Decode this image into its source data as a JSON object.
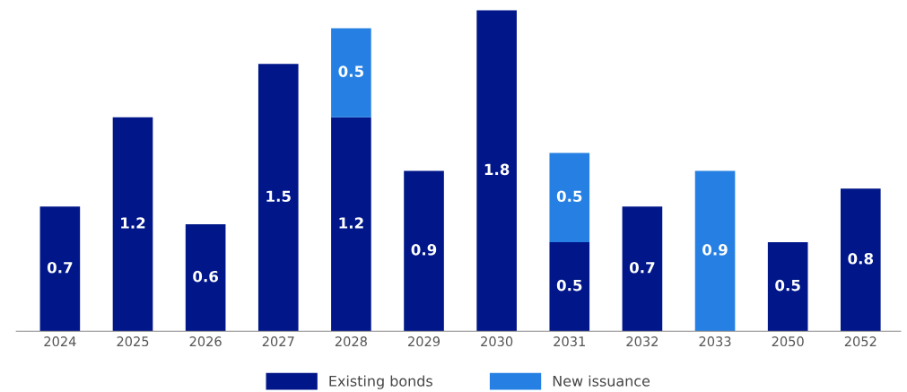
{
  "chart_data": {
    "type": "bar",
    "stacked": true,
    "data_labels": true,
    "legend": "bottom",
    "grid": false,
    "categories": [
      "2024",
      "2025",
      "2026",
      "2027",
      "2028",
      "2029",
      "2030",
      "2031",
      "2032",
      "2033",
      "2050",
      "2052"
    ],
    "series": [
      {
        "name": "Existing bonds",
        "color": "#001689",
        "values": [
          0.7,
          1.2,
          0.6,
          1.5,
          1.2,
          0.9,
          1.8,
          0.5,
          0.7,
          null,
          0.5,
          0.8
        ]
      },
      {
        "name": "New issuance",
        "color": "#2680e3",
        "values": [
          null,
          null,
          null,
          null,
          0.5,
          null,
          null,
          0.5,
          null,
          0.9,
          null,
          null
        ]
      }
    ]
  }
}
